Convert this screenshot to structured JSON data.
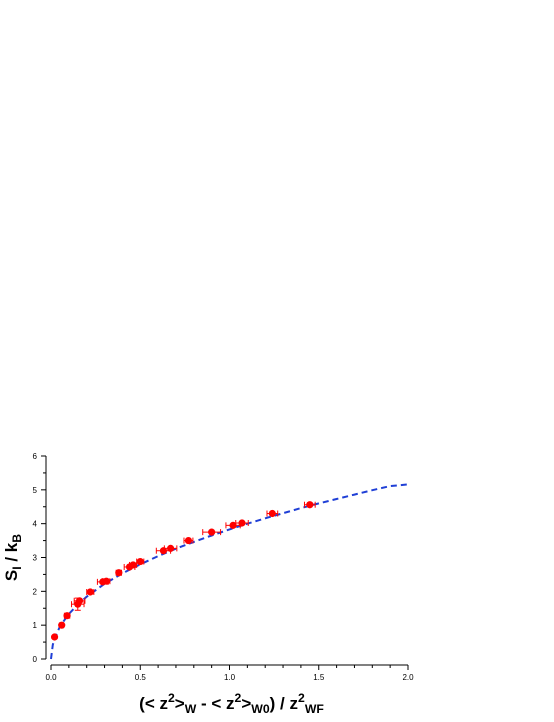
{
  "chart_data": {
    "type": "scatter",
    "title": "",
    "xlim": [
      0,
      2.0
    ],
    "ylim": [
      0,
      6
    ],
    "x_ticks": [
      0.0,
      0.5,
      1.0,
      1.5,
      2.0
    ],
    "x_tick_labels": [
      "0.0",
      "0.5",
      "1.0",
      "1.5",
      "2.0"
    ],
    "y_ticks": [
      0,
      1,
      2,
      3,
      4,
      5,
      6
    ],
    "y_tick_labels": [
      "0",
      "1",
      "2",
      "3",
      "4",
      "5",
      "6"
    ],
    "grid": false,
    "xlabel": {
      "parts": [
        {
          "t": "(< z",
          "s": "n"
        },
        {
          "t": "2",
          "s": "sup"
        },
        {
          "t": ">",
          "s": "n"
        },
        {
          "t": "W",
          "s": "sub"
        },
        {
          "t": " - < z",
          "s": "n"
        },
        {
          "t": "2",
          "s": "sup"
        },
        {
          "t": ">",
          "s": "n"
        },
        {
          "t": "W0",
          "s": "sub"
        },
        {
          "t": ") / z",
          "s": "n"
        },
        {
          "t": "2",
          "s": "sup"
        },
        {
          "t": "WF",
          "s": "sub"
        }
      ]
    },
    "ylabel": {
      "parts": [
        {
          "t": "S",
          "s": "n"
        },
        {
          "t": "I",
          "s": "sub"
        },
        {
          "t": " / k",
          "s": "n"
        },
        {
          "t": "B",
          "s": "sub"
        }
      ]
    },
    "series": [
      {
        "kind": "points",
        "color": "#ff0000",
        "points": [
          {
            "x": 0.02,
            "y": 0.65,
            "xerr": 0.005
          },
          {
            "x": 0.06,
            "y": 1.0,
            "xerr": 0.01
          },
          {
            "x": 0.09,
            "y": 1.28,
            "xerr": 0.015
          },
          {
            "x": 0.15,
            "y": 1.62,
            "xerr": 0.035,
            "yerr": 0.18
          },
          {
            "x": 0.16,
            "y": 1.72,
            "xerr": 0.03
          },
          {
            "x": 0.22,
            "y": 1.98,
            "xerr": 0.02
          },
          {
            "x": 0.29,
            "y": 2.28,
            "xerr": 0.03
          },
          {
            "x": 0.31,
            "y": 2.3,
            "xerr": 0.02
          },
          {
            "x": 0.38,
            "y": 2.55,
            "xerr": 0.015
          },
          {
            "x": 0.44,
            "y": 2.72,
            "xerr": 0.03
          },
          {
            "x": 0.46,
            "y": 2.78,
            "xerr": 0.02
          },
          {
            "x": 0.5,
            "y": 2.88,
            "xerr": 0.02
          },
          {
            "x": 0.63,
            "y": 3.2,
            "xerr": 0.04
          },
          {
            "x": 0.67,
            "y": 3.27,
            "xerr": 0.035
          },
          {
            "x": 0.77,
            "y": 3.5,
            "xerr": 0.025
          },
          {
            "x": 0.9,
            "y": 3.75,
            "xerr": 0.05
          },
          {
            "x": 1.02,
            "y": 3.95,
            "xerr": 0.04
          },
          {
            "x": 1.07,
            "y": 4.02,
            "xerr": 0.035
          },
          {
            "x": 1.24,
            "y": 4.3,
            "xerr": 0.03
          },
          {
            "x": 1.45,
            "y": 4.56,
            "xerr": 0.03
          }
        ]
      },
      {
        "kind": "fit",
        "style": "dashed",
        "color": "#1f3fd6",
        "x": [
          0.0,
          0.01,
          0.02,
          0.05,
          0.1,
          0.15,
          0.2,
          0.3,
          0.4,
          0.5,
          0.6,
          0.7,
          0.8,
          0.9,
          1.0,
          1.1,
          1.2,
          1.3,
          1.4,
          1.5,
          1.6,
          1.7,
          1.8,
          1.9,
          2.0
        ],
        "y": [
          0.0,
          0.42,
          0.6,
          0.96,
          1.33,
          1.61,
          1.84,
          2.22,
          2.53,
          2.8,
          3.04,
          3.26,
          3.46,
          3.65,
          3.83,
          4.0,
          4.16,
          4.31,
          4.46,
          4.6,
          4.73,
          4.86,
          4.99,
          5.11,
          5.16
        ]
      }
    ]
  }
}
